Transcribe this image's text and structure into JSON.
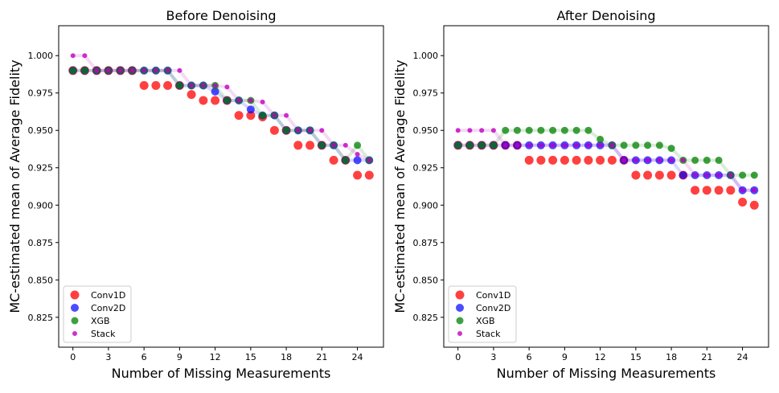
{
  "chart_data": [
    {
      "type": "scatter",
      "title": "Before Denoising",
      "xlabel": "Number of Missing Measurements",
      "ylabel": "MC-estimated mean of Average Fidelity",
      "xlim": [
        -1.2,
        26.2
      ],
      "ylim": [
        0.805,
        1.02
      ],
      "xticks": [
        0,
        3,
        6,
        9,
        12,
        15,
        18,
        21,
        24
      ],
      "yticks": [
        0.825,
        0.85,
        0.875,
        0.9,
        0.925,
        0.95,
        0.975,
        1.0
      ],
      "ytick_labels": [
        "0.825",
        "0.850",
        "0.875",
        "0.900",
        "0.925",
        "0.950",
        "0.975",
        "1.000"
      ],
      "legend_position": "bottom-left",
      "series": [
        {
          "name": "Conv1D",
          "color": "#ff0000",
          "x": [
            0,
            1,
            2,
            3,
            4,
            5,
            6,
            7,
            8,
            9,
            10,
            11,
            12,
            13,
            14,
            15,
            16,
            17,
            18,
            19,
            20,
            21,
            22,
            23,
            24,
            25
          ],
          "values": [
            0.99,
            0.99,
            0.99,
            0.99,
            0.99,
            0.99,
            0.98,
            0.98,
            0.98,
            0.98,
            0.974,
            0.97,
            0.97,
            0.97,
            0.96,
            0.96,
            0.959,
            0.95,
            0.95,
            0.94,
            0.94,
            0.94,
            0.93,
            0.93,
            0.92,
            0.92
          ]
        },
        {
          "name": "Conv2D",
          "color": "#0000ff",
          "x": [
            0,
            1,
            2,
            3,
            4,
            5,
            6,
            7,
            8,
            9,
            10,
            11,
            12,
            13,
            14,
            15,
            16,
            17,
            18,
            19,
            20,
            21,
            22,
            23,
            24,
            25
          ],
          "values": [
            0.99,
            0.99,
            0.99,
            0.99,
            0.99,
            0.99,
            0.99,
            0.99,
            0.99,
            0.98,
            0.98,
            0.98,
            0.976,
            0.97,
            0.97,
            0.964,
            0.96,
            0.96,
            0.95,
            0.95,
            0.95,
            0.94,
            0.94,
            0.93,
            0.93,
            0.93
          ]
        },
        {
          "name": "XGB",
          "color": "#008000",
          "x": [
            0,
            1,
            2,
            3,
            4,
            5,
            6,
            7,
            8,
            9,
            10,
            11,
            12,
            13,
            14,
            15,
            16,
            17,
            18,
            19,
            20,
            21,
            22,
            23,
            24,
            25
          ],
          "values": [
            0.99,
            0.99,
            0.99,
            0.99,
            0.99,
            0.99,
            0.99,
            0.99,
            0.99,
            0.98,
            0.98,
            0.98,
            0.98,
            0.97,
            0.97,
            0.97,
            0.96,
            0.96,
            0.95,
            0.95,
            0.95,
            0.94,
            0.94,
            0.93,
            0.94,
            0.93
          ]
        },
        {
          "name": "Stack",
          "color": "#bf00bf",
          "x": [
            0,
            1,
            2,
            3,
            4,
            5,
            6,
            7,
            8,
            9,
            10,
            11,
            12,
            13,
            14,
            15,
            16,
            17,
            18,
            19,
            20,
            21,
            22,
            23,
            24,
            25
          ],
          "values": [
            1.0,
            1.0,
            0.99,
            0.99,
            0.99,
            0.99,
            0.99,
            0.99,
            0.99,
            0.99,
            0.98,
            0.98,
            0.98,
            0.979,
            0.97,
            0.97,
            0.969,
            0.96,
            0.96,
            0.95,
            0.95,
            0.95,
            0.94,
            0.94,
            0.934,
            0.93
          ]
        }
      ]
    },
    {
      "type": "scatter",
      "title": "After Denoising",
      "xlabel": "Number of Missing Measurements",
      "ylabel": "MC-estimated mean of Average Fidelity",
      "xlim": [
        -1.2,
        26.2
      ],
      "ylim": [
        0.805,
        1.02
      ],
      "xticks": [
        0,
        3,
        6,
        9,
        12,
        15,
        18,
        21,
        24
      ],
      "yticks": [
        0.825,
        0.85,
        0.875,
        0.9,
        0.925,
        0.95,
        0.975,
        1.0
      ],
      "ytick_labels": [
        "0.825",
        "0.850",
        "0.875",
        "0.900",
        "0.925",
        "0.950",
        "0.975",
        "1.000"
      ],
      "legend_position": "bottom-left",
      "series": [
        {
          "name": "Conv1D",
          "color": "#ff0000",
          "x": [
            0,
            1,
            2,
            3,
            4,
            5,
            6,
            7,
            8,
            9,
            10,
            11,
            12,
            13,
            14,
            15,
            16,
            17,
            18,
            19,
            20,
            21,
            22,
            23,
            24,
            25
          ],
          "values": [
            0.94,
            0.94,
            0.94,
            0.94,
            0.94,
            0.94,
            0.93,
            0.93,
            0.93,
            0.93,
            0.93,
            0.93,
            0.93,
            0.93,
            0.93,
            0.92,
            0.92,
            0.92,
            0.92,
            0.92,
            0.91,
            0.91,
            0.91,
            0.91,
            0.902,
            0.9
          ]
        },
        {
          "name": "Conv2D",
          "color": "#0000ff",
          "x": [
            0,
            1,
            2,
            3,
            4,
            5,
            6,
            7,
            8,
            9,
            10,
            11,
            12,
            13,
            14,
            15,
            16,
            17,
            18,
            19,
            20,
            21,
            22,
            23,
            24,
            25
          ],
          "values": [
            0.94,
            0.94,
            0.94,
            0.94,
            0.94,
            0.94,
            0.94,
            0.94,
            0.94,
            0.94,
            0.94,
            0.94,
            0.94,
            0.94,
            0.93,
            0.93,
            0.93,
            0.93,
            0.93,
            0.92,
            0.92,
            0.92,
            0.92,
            0.92,
            0.91,
            0.91
          ]
        },
        {
          "name": "XGB",
          "color": "#008000",
          "x": [
            0,
            1,
            2,
            3,
            4,
            5,
            6,
            7,
            8,
            9,
            10,
            11,
            12,
            13,
            14,
            15,
            16,
            17,
            18,
            19,
            20,
            21,
            22,
            23,
            24,
            25
          ],
          "values": [
            0.94,
            0.94,
            0.94,
            0.94,
            0.95,
            0.95,
            0.95,
            0.95,
            0.95,
            0.95,
            0.95,
            0.95,
            0.944,
            0.94,
            0.94,
            0.94,
            0.94,
            0.94,
            0.938,
            0.93,
            0.93,
            0.93,
            0.93,
            0.92,
            0.92,
            0.92
          ]
        },
        {
          "name": "Stack",
          "color": "#bf00bf",
          "x": [
            0,
            1,
            2,
            3,
            4,
            5,
            6,
            7,
            8,
            9,
            10,
            11,
            12,
            13,
            14,
            15,
            16,
            17,
            18,
            19,
            20,
            21,
            22,
            23,
            24,
            25
          ],
          "values": [
            0.95,
            0.95,
            0.95,
            0.95,
            0.94,
            0.94,
            0.94,
            0.94,
            0.94,
            0.94,
            0.94,
            0.94,
            0.94,
            0.94,
            0.93,
            0.93,
            0.93,
            0.93,
            0.93,
            0.93,
            0.92,
            0.92,
            0.92,
            0.92,
            0.91,
            0.91
          ]
        }
      ]
    }
  ]
}
